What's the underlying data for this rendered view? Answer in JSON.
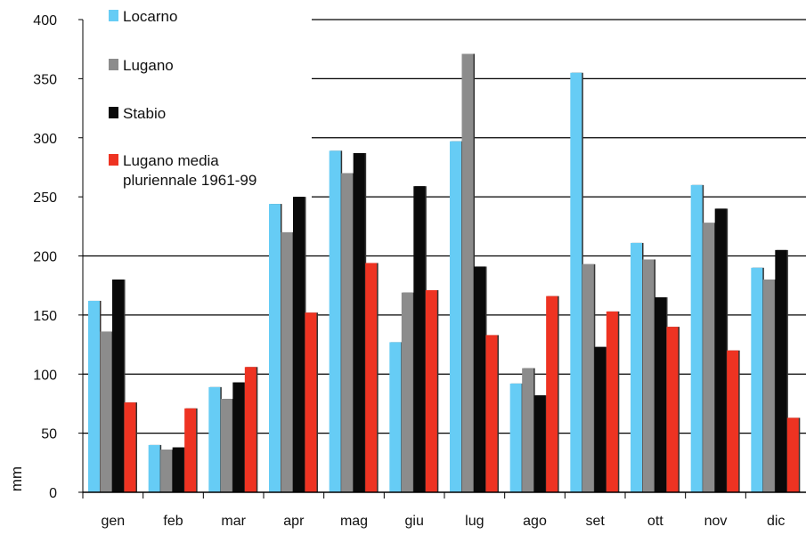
{
  "chart_data": {
    "type": "bar",
    "title": "",
    "xlabel": "",
    "ylabel": "mm",
    "ylim": [
      0,
      400
    ],
    "yticks": [
      0,
      50,
      100,
      150,
      200,
      250,
      300,
      350,
      400
    ],
    "grid": true,
    "legend_position": "top-left",
    "categories": [
      "gen",
      "feb",
      "mar",
      "apr",
      "mag",
      "giu",
      "lug",
      "ago",
      "set",
      "ott",
      "nov",
      "dic"
    ],
    "series": [
      {
        "name": "Locarno",
        "color": "#66ccf5",
        "values": [
          162,
          40,
          89,
          244,
          289,
          127,
          297,
          92,
          355,
          211,
          260,
          190
        ]
      },
      {
        "name": "Lugano",
        "color": "#8c8c8c",
        "values": [
          136,
          36,
          79,
          220,
          270,
          169,
          371,
          105,
          193,
          197,
          228,
          180
        ]
      },
      {
        "name": "Stabio",
        "color": "#0a0a0a",
        "values": [
          180,
          38,
          93,
          250,
          287,
          259,
          191,
          82,
          123,
          165,
          240,
          205
        ]
      },
      {
        "name": "Lugano media\npluriennale 1961-99",
        "color": "#ee3322",
        "values": [
          76,
          71,
          106,
          152,
          194,
          171,
          133,
          166,
          153,
          140,
          120,
          63
        ]
      }
    ]
  }
}
